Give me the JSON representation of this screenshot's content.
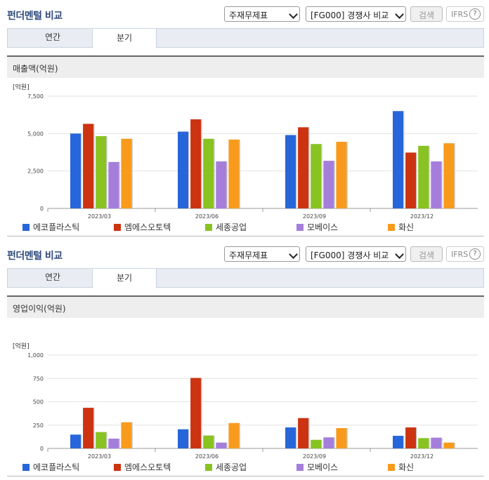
{
  "colors": {
    "series": [
      "#2766da",
      "#cc3311",
      "#88c322",
      "#a57edc",
      "#f89b1c"
    ],
    "title": "#2e4a7d"
  },
  "panels": [
    {
      "title": "펀더멘털 비교",
      "statement_select": "주재무제표",
      "compare_select": "[FG000] 경쟁사 비교",
      "search_label": "검색",
      "ifrs_label": "IFRS",
      "help_symbol": "?",
      "tabs": [
        {
          "label": "연간"
        },
        {
          "label": "분기"
        }
      ],
      "active_tab": 1,
      "chart_title": "매출액(억원)",
      "unit": "[억원]",
      "chart_data": {
        "type": "bar",
        "categories": [
          "2023/03",
          "2023/06",
          "2023/09",
          "2023/12"
        ],
        "ylim": [
          0,
          7500
        ],
        "yticks": [
          "0",
          "2,500",
          "5,000",
          "7,500"
        ],
        "ytick_values": [
          0,
          2500,
          5000,
          7500
        ],
        "series": [
          {
            "name": "에코플라스틱",
            "values": [
              5000,
              5130,
              4900,
              6500
            ]
          },
          {
            "name": "엠에스오토텍",
            "values": [
              5650,
              5950,
              5420,
              3730
            ]
          },
          {
            "name": "세종공업",
            "values": [
              4830,
              4650,
              4300,
              4180
            ]
          },
          {
            "name": "모베이스",
            "values": [
              3100,
              3140,
              3180,
              3140
            ]
          },
          {
            "name": "화신",
            "values": [
              4650,
              4600,
              4450,
              4350
            ]
          }
        ],
        "grid": true,
        "legend": "bottom"
      }
    },
    {
      "title": "펀더멘털 비교",
      "statement_select": "주재무제표",
      "compare_select": "[FG000] 경쟁사 비교",
      "search_label": "검색",
      "ifrs_label": "IFRS",
      "help_symbol": "?",
      "tabs": [
        {
          "label": "연간"
        },
        {
          "label": "분기"
        }
      ],
      "active_tab": 1,
      "chart_title": "영업이익(억원)",
      "unit": "[억원]",
      "chart_data": {
        "type": "bar",
        "categories": [
          "2023/03",
          "2023/06",
          "2023/09",
          "2023/12"
        ],
        "ylim": [
          0,
          1000
        ],
        "yticks": [
          "0",
          "250",
          "500",
          "750",
          "1,000"
        ],
        "ytick_values": [
          0,
          250,
          500,
          750,
          1000
        ],
        "series": [
          {
            "name": "에코플라스틱",
            "values": [
              148,
              205,
              225,
              135
            ]
          },
          {
            "name": "엠에스오토텍",
            "values": [
              435,
              755,
              325,
              225
            ]
          },
          {
            "name": "세종공업",
            "values": [
              175,
              138,
              92,
              110
            ]
          },
          {
            "name": "모베이스",
            "values": [
              105,
              62,
              118,
              115
            ]
          },
          {
            "name": "화신",
            "values": [
              280,
              272,
              218,
              62
            ]
          }
        ],
        "grid": true,
        "legend": "bottom"
      }
    }
  ]
}
